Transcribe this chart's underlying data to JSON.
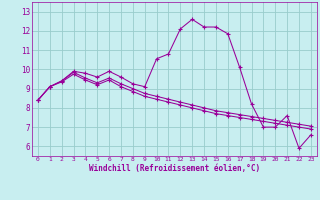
{
  "xlabel": "Windchill (Refroidissement éolien,°C)",
  "ylabel": "",
  "xlim": [
    -0.5,
    23.5
  ],
  "ylim": [
    5.5,
    13.5
  ],
  "xtick_vals": [
    0,
    1,
    2,
    3,
    4,
    5,
    6,
    7,
    8,
    9,
    10,
    11,
    12,
    13,
    14,
    15,
    16,
    17,
    18,
    19,
    20,
    21,
    22,
    23
  ],
  "xtick_labels": [
    "0",
    "1",
    "2",
    "3",
    "4",
    "5",
    "6",
    "7",
    "8",
    "9",
    "10",
    "11",
    "12",
    "13",
    "14",
    "15",
    "16",
    "17",
    "18",
    "19",
    "20",
    "21",
    "22",
    "23"
  ],
  "ytick_vals": [
    6,
    7,
    8,
    9,
    10,
    11,
    12,
    13
  ],
  "ytick_labels": [
    "6",
    "7",
    "8",
    "9",
    "10",
    "11",
    "12",
    "13"
  ],
  "bg_color": "#c8eef0",
  "line_color": "#990099",
  "grid_color": "#99cccc",
  "line1_y": [
    8.4,
    9.1,
    9.4,
    9.9,
    9.8,
    9.6,
    9.9,
    9.6,
    9.25,
    9.1,
    10.55,
    10.8,
    12.1,
    12.6,
    12.2,
    12.2,
    11.85,
    10.1,
    8.2,
    7.0,
    7.0,
    7.6,
    5.9,
    6.6
  ],
  "line2_y": [
    8.4,
    9.1,
    9.4,
    9.85,
    9.55,
    9.3,
    9.55,
    9.25,
    9.0,
    8.75,
    8.6,
    8.45,
    8.3,
    8.15,
    8.0,
    7.85,
    7.75,
    7.65,
    7.55,
    7.45,
    7.35,
    7.25,
    7.15,
    7.05
  ],
  "line3_y": [
    8.4,
    9.1,
    9.35,
    9.75,
    9.45,
    9.2,
    9.45,
    9.1,
    8.85,
    8.6,
    8.45,
    8.3,
    8.15,
    8.0,
    7.85,
    7.7,
    7.6,
    7.5,
    7.4,
    7.3,
    7.2,
    7.1,
    7.0,
    6.9
  ]
}
